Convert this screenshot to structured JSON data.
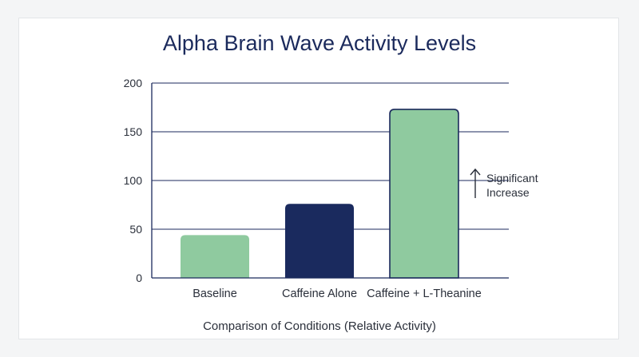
{
  "chart_data": {
    "type": "bar",
    "title": "Alpha Brain Wave Activity Levels",
    "xlabel": "Comparison of Conditions (Relative Activity)",
    "ylabel": "",
    "categories": [
      "Baseline",
      "Caffeine Alone",
      "Caffeine + L-Theanine"
    ],
    "values": [
      44,
      76,
      173
    ],
    "ylim": [
      0,
      200
    ],
    "yticks": [
      0,
      50,
      100,
      150,
      200
    ],
    "bar_colors": [
      "#8fca9f",
      "#1a2a5e",
      "#8fca9f"
    ],
    "grid": true,
    "annotation": {
      "line1": "Significant",
      "line2": "Increase",
      "arrow": "up-arrow-icon"
    }
  },
  "colors": {
    "text_dark": "#1b2a5c",
    "axis": "#1b2a5c",
    "background": "#ffffff"
  }
}
